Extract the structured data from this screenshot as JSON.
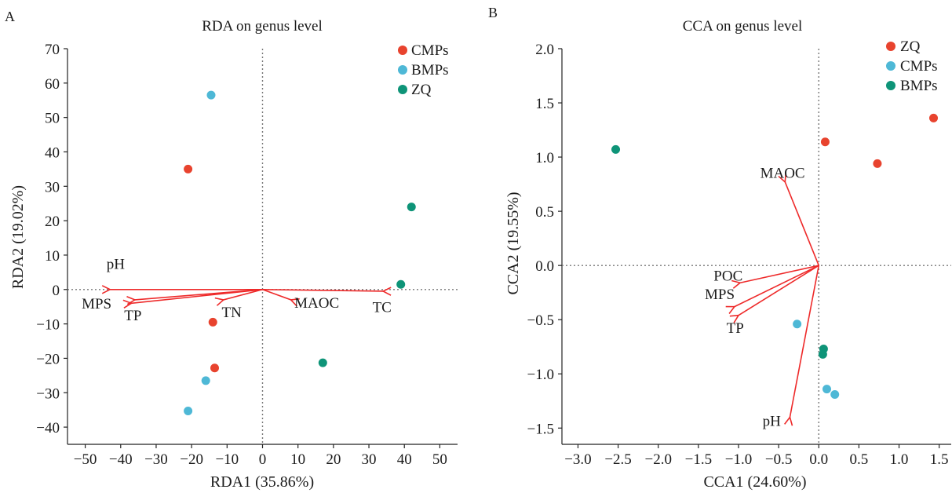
{
  "panels": [
    {
      "letter": "A",
      "title": "RDA on genus level",
      "xlabel": "RDA1 (35.86%)",
      "ylabel": "RDA2 (19.02%)",
      "legend": [
        {
          "label": "CMPs",
          "color": "#e8432e"
        },
        {
          "label": "BMPs",
          "color": "#4eb8d6"
        },
        {
          "label": "ZQ",
          "color": "#0e9478"
        }
      ]
    },
    {
      "letter": "B",
      "title": "CCA on genus level",
      "xlabel": "CCA1 (24.60%)",
      "ylabel": "CCA2 (19.55%)",
      "legend": [
        {
          "label": "ZQ",
          "color": "#e8432e"
        },
        {
          "label": "CMPs",
          "color": "#4eb8d6"
        },
        {
          "label": "BMPs",
          "color": "#0e9478"
        }
      ]
    }
  ],
  "chart_data": [
    {
      "type": "scatter",
      "title": "RDA on genus level",
      "xlabel": "RDA1 (35.86%)",
      "ylabel": "RDA2 (19.02%)",
      "xlim": [
        -55,
        55
      ],
      "ylim": [
        -45,
        70
      ],
      "xticks": [
        -50,
        -40,
        -30,
        -20,
        -10,
        0,
        10,
        20,
        30,
        40,
        50
      ],
      "yticks": [
        -40,
        -30,
        -20,
        -10,
        0,
        10,
        20,
        30,
        40,
        50,
        60,
        70
      ],
      "reference_lines": {
        "x": 0,
        "y": 0,
        "style": "dotted"
      },
      "legend_position": "top-right",
      "series": [
        {
          "name": "CMPs",
          "color": "#e8432e",
          "points": [
            [
              -21,
              35
            ],
            [
              -14,
              -9.5
            ],
            [
              -13.5,
              -22.8
            ]
          ]
        },
        {
          "name": "BMPs",
          "color": "#4eb8d6",
          "points": [
            [
              -14.5,
              56.5
            ],
            [
              -16,
              -26.5
            ],
            [
              -21,
              -35.3
            ]
          ]
        },
        {
          "name": "ZQ",
          "color": "#0e9478",
          "points": [
            [
              42,
              24
            ],
            [
              39,
              1.5
            ],
            [
              17,
              -21.3
            ]
          ]
        }
      ],
      "arrows": [
        {
          "label": "pH",
          "x": -43,
          "y": 0
        },
        {
          "label": "MPS",
          "x": -37,
          "y": -4
        },
        {
          "label": "TP",
          "x": -36,
          "y": -3
        },
        {
          "label": "TN",
          "x": -11,
          "y": -3
        },
        {
          "label": "MAOC",
          "x": 8,
          "y": -3
        },
        {
          "label": "TC",
          "x": 34,
          "y": -0.5
        }
      ],
      "arrow_color": "#ee2a2a"
    },
    {
      "type": "scatter",
      "title": "CCA on genus level",
      "xlabel": "CCA1 (24.60%)",
      "ylabel": "CCA2 (19.55%)",
      "xlim": [
        -3.2,
        1.65
      ],
      "ylim": [
        -1.65,
        2.0
      ],
      "xticks": [
        -3.0,
        -2.5,
        -2.0,
        -1.5,
        -1.0,
        -0.5,
        0.0,
        0.5,
        1.0,
        1.5
      ],
      "yticks": [
        -1.5,
        -1.0,
        -0.5,
        0.0,
        0.5,
        1.0,
        1.5,
        2.0
      ],
      "reference_lines": {
        "x": 0,
        "y": 0,
        "style": "dotted"
      },
      "legend_position": "top-right",
      "series": [
        {
          "name": "ZQ",
          "color": "#e8432e",
          "points": [
            [
              0.08,
              1.14
            ],
            [
              0.73,
              0.94
            ],
            [
              1.43,
              1.36
            ]
          ]
        },
        {
          "name": "CMPs",
          "color": "#4eb8d6",
          "points": [
            [
              -0.27,
              -0.54
            ],
            [
              0.1,
              -1.14
            ],
            [
              0.2,
              -1.19
            ]
          ]
        },
        {
          "name": "BMPs",
          "color": "#0e9478",
          "points": [
            [
              -2.53,
              1.07
            ],
            [
              0.06,
              -0.77
            ],
            [
              0.05,
              -0.82
            ]
          ]
        }
      ],
      "arrows": [
        {
          "label": "MAOC",
          "x": -0.42,
          "y": 0.77
        },
        {
          "label": "POC",
          "x": -0.98,
          "y": -0.16
        },
        {
          "label": "MPS",
          "x": -1.05,
          "y": -0.38
        },
        {
          "label": "TP",
          "x": -1.0,
          "y": -0.46
        },
        {
          "label": "pH",
          "x": -0.36,
          "y": -1.4
        }
      ],
      "arrow_color": "#ee2a2a"
    }
  ]
}
